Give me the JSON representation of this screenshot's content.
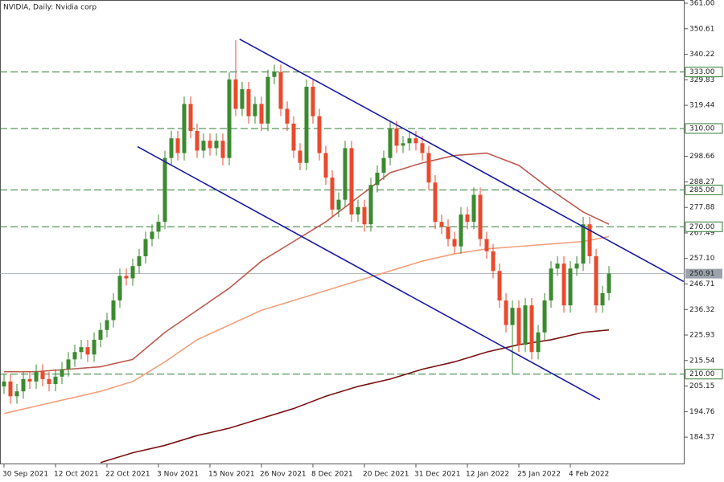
{
  "chart_data": {
    "type": "candlestick",
    "title": "NVIDIA, Daily:  Nvidia corp",
    "categories": [
      "30 Sep 2021",
      null,
      null,
      null,
      null,
      null,
      null,
      null,
      "12 Oct 2021",
      null,
      null,
      null,
      null,
      null,
      null,
      null,
      "22 Oct 2021",
      null,
      null,
      null,
      null,
      null,
      null,
      null,
      "3 Nov 2021",
      null,
      null,
      null,
      null,
      null,
      null,
      null,
      "15 Nov 2021",
      null,
      null,
      null,
      null,
      null,
      null,
      null,
      "26 Nov 2021",
      null,
      null,
      null,
      null,
      null,
      null,
      null,
      "8 Dec 2021",
      null,
      null,
      null,
      null,
      null,
      null,
      null,
      "20 Dec 2021",
      null,
      null,
      null,
      null,
      null,
      null,
      null,
      "31 Dec 2021",
      null,
      null,
      null,
      null,
      null,
      null,
      null,
      "12 Jan 2022",
      null,
      null,
      null,
      null,
      null,
      null,
      null,
      "25 Jan 2022",
      null,
      null,
      null,
      null,
      null,
      null,
      null,
      "4 Feb 2022",
      null,
      null,
      null,
      null,
      null,
      null
    ],
    "open": [
      205,
      207,
      201,
      203,
      208,
      207,
      211,
      208,
      206,
      209,
      212,
      216,
      219,
      221,
      218,
      224,
      228,
      232,
      240,
      250,
      249,
      254,
      258,
      265,
      268,
      272,
      298,
      306,
      300,
      320,
      309,
      301,
      305,
      302,
      305,
      298,
      330,
      318,
      326,
      315,
      320,
      312,
      331,
      333,
      318,
      312,
      301,
      296,
      327,
      315,
      300,
      290,
      277,
      281,
      302,
      275,
      278,
      271,
      287,
      292,
      298,
      310,
      303,
      304,
      306,
      304,
      300,
      288,
      272,
      270,
      265,
      262,
      275,
      272,
      283,
      265,
      260,
      252,
      240,
      230,
      237,
      222,
      238,
      219,
      227,
      240,
      253,
      255,
      238,
      253,
      255,
      271,
      258,
      238,
      243
    ],
    "high": [
      210,
      210,
      206,
      211,
      211,
      214,
      214,
      211,
      212,
      215,
      219,
      222,
      224,
      224,
      227,
      231,
      235,
      243,
      253,
      253,
      257,
      261,
      268,
      271,
      275,
      301,
      309,
      309,
      323,
      323,
      312,
      308,
      308,
      308,
      308,
      333,
      346,
      329,
      329,
      323,
      323,
      334,
      336,
      336,
      321,
      315,
      304,
      330,
      330,
      318,
      303,
      293,
      284,
      305,
      305,
      281,
      281,
      290,
      295,
      301,
      313,
      313,
      307,
      309,
      309,
      307,
      303,
      291,
      275,
      273,
      268,
      278,
      278,
      286,
      286,
      268,
      263,
      255,
      243,
      240,
      240,
      241,
      241,
      230,
      243,
      256,
      258,
      258,
      256,
      258,
      274,
      274,
      261,
      246,
      254
    ],
    "low": [
      202,
      198,
      198,
      200,
      204,
      204,
      205,
      203,
      203,
      206,
      209,
      213,
      216,
      215,
      215,
      221,
      225,
      229,
      237,
      246,
      246,
      251,
      255,
      262,
      265,
      269,
      295,
      297,
      297,
      306,
      298,
      298,
      299,
      299,
      295,
      295,
      315,
      315,
      312,
      312,
      309,
      309,
      328,
      315,
      309,
      298,
      293,
      293,
      312,
      297,
      287,
      274,
      274,
      278,
      272,
      272,
      268,
      268,
      284,
      289,
      295,
      300,
      300,
      301,
      301,
      297,
      285,
      269,
      267,
      262,
      259,
      259,
      269,
      269,
      262,
      257,
      249,
      237,
      227,
      210,
      219,
      219,
      216,
      216,
      224,
      237,
      250,
      235,
      235,
      250,
      252,
      255,
      235,
      235,
      240
    ],
    "close": [
      207,
      201,
      203,
      208,
      207,
      211,
      208,
      206,
      209,
      212,
      216,
      219,
      221,
      218,
      224,
      228,
      232,
      240,
      250,
      249,
      254,
      258,
      265,
      268,
      272,
      298,
      306,
      300,
      320,
      309,
      301,
      305,
      302,
      305,
      298,
      330,
      318,
      326,
      315,
      320,
      312,
      331,
      333,
      318,
      312,
      301,
      296,
      327,
      315,
      300,
      290,
      277,
      281,
      302,
      275,
      278,
      271,
      287,
      292,
      298,
      310,
      303,
      304,
      306,
      304,
      300,
      288,
      272,
      270,
      265,
      262,
      275,
      272,
      283,
      265,
      260,
      252,
      240,
      230,
      237,
      222,
      238,
      219,
      227,
      240,
      253,
      255,
      238,
      253,
      255,
      271,
      258,
      238,
      243,
      251
    ],
    "up_color": "#3b8a2f",
    "down_color": "#ea4a2c",
    "ylim": [
      174.6,
      361
    ],
    "yticks": [
      {
        "value": 361,
        "label": "361.00"
      },
      350.61,
      340.22,
      329.83,
      319.44,
      298.66,
      288.27,
      277.88,
      267.49,
      {
        "value": 257.1,
        "label": "257.10"
      },
      246.71,
      236.32,
      225.93,
      215.54,
      205.15,
      194.76,
      184.37
    ],
    "moving_averages": [
      {
        "color": "#bf5a4f",
        "x": [
          0,
          5,
          10,
          15,
          20,
          25,
          30,
          35,
          40,
          45,
          50,
          55,
          60,
          65,
          70,
          75,
          80,
          85,
          90,
          94
        ],
        "values": [
          211,
          211,
          212,
          213,
          216,
          227,
          236,
          245,
          256,
          264,
          272,
          282,
          292,
          296,
          299,
          300,
          295,
          285,
          276,
          271
        ]
      },
      {
        "color": "#f3a07c",
        "x": [
          0,
          5,
          10,
          15,
          20,
          25,
          30,
          35,
          40,
          45,
          50,
          55,
          60,
          65,
          70,
          75,
          80,
          85,
          90,
          94
        ],
        "values": [
          194,
          197,
          200,
          203,
          207,
          215,
          224,
          230,
          236,
          240,
          244,
          248,
          252,
          256,
          259,
          261,
          262,
          263,
          264,
          266
        ]
      },
      {
        "color": "#7b1212",
        "x": [
          15,
          20,
          25,
          30,
          35,
          40,
          45,
          50,
          55,
          60,
          65,
          70,
          75,
          80,
          85,
          90,
          94
        ],
        "values": [
          174,
          178,
          181,
          185,
          188,
          192,
          196,
          201,
          205,
          208,
          212,
          215,
          219,
          222,
          224,
          227,
          228
        ]
      }
    ],
    "trendlines": [
      {
        "color": "#1a1aa8",
        "x": [
          36.6,
          105.6
        ],
        "values": [
          346.4,
          247.7
        ]
      },
      {
        "color": "#1a1aa8",
        "x": [
          20.75,
          92.6
        ],
        "values": [
          302.6,
          199.6
        ]
      }
    ],
    "levels": [
      {
        "value": 333,
        "label": "333.00"
      },
      {
        "value": 310,
        "label": "310.00"
      },
      {
        "value": 285,
        "label": "285.00"
      },
      {
        "value": 270,
        "label": "270.00"
      },
      {
        "value": 210,
        "label": "210.00"
      }
    ],
    "level_color": "#2e7d32",
    "last_price": 250.91,
    "last_price_color": "#9aa3ad"
  }
}
